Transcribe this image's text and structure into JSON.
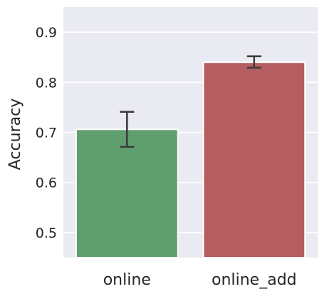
{
  "chart_data": {
    "type": "bar",
    "title": "",
    "xlabel": "",
    "ylabel": "Accuracy",
    "categories": [
      "online",
      "online_add"
    ],
    "values": [
      0.706,
      0.84
    ],
    "error_low": [
      0.671,
      0.829
    ],
    "error_high": [
      0.741,
      0.852
    ],
    "colors": [
      "#5f9e6e",
      "#b55d60"
    ],
    "ylim": [
      0.45,
      0.95
    ],
    "yticks": [
      "0.5",
      "0.6",
      "0.7",
      "0.8",
      "0.9"
    ],
    "grid": true,
    "background": "#eaeaf2"
  }
}
